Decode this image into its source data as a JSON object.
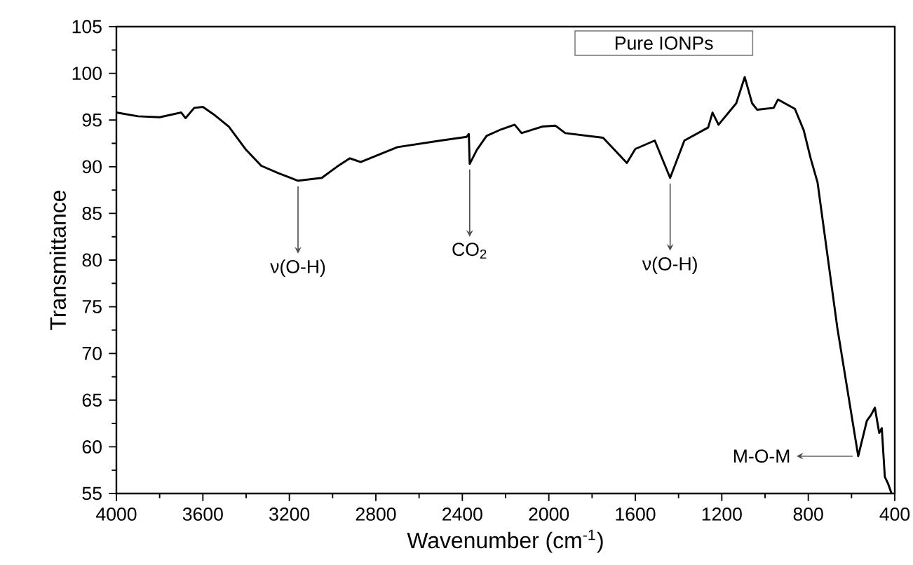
{
  "chart_data": {
    "type": "line",
    "xlabel": "Wavenumber (cm$^{-1}$)",
    "ylabel": "Transmittance",
    "x": [
      4000,
      3900,
      3800,
      3700,
      3680,
      3640,
      3600,
      3550,
      3480,
      3400,
      3330,
      3250,
      3160,
      3050,
      2980,
      2920,
      2870,
      2700,
      2500,
      2380,
      2370,
      2366,
      2333,
      2288,
      2220,
      2158,
      2126,
      2030,
      1970,
      1924,
      1749,
      1639,
      1600,
      1510,
      1439,
      1373,
      1263,
      1243,
      1215,
      1133,
      1094,
      1060,
      1036,
      960,
      940,
      862,
      821,
      789,
      757,
      666,
      569,
      529,
      510,
      492,
      472,
      460,
      446,
      430,
      415
    ],
    "series": [
      {
        "color": "#000000",
        "values": [
          95.8,
          95.4,
          95.3,
          95.8,
          95.2,
          96.3,
          96.4,
          95.6,
          94.3,
          91.8,
          90.1,
          89.3,
          88.5,
          88.8,
          90.0,
          90.9,
          90.5,
          92.1,
          92.8,
          93.2,
          93.5,
          90.3,
          91.8,
          93.3,
          94.0,
          94.5,
          93.6,
          94.3,
          94.4,
          93.6,
          93.1,
          90.4,
          91.9,
          92.8,
          88.8,
          92.8,
          94.2,
          95.8,
          94.5,
          96.8,
          99.6,
          96.8,
          96.1,
          96.3,
          97.2,
          96.2,
          93.9,
          90.9,
          88.3,
          72.8,
          59.0,
          62.8,
          63.4,
          64.2,
          61.5,
          62.0,
          56.8,
          56.0,
          55.0
        ]
      }
    ],
    "xlim": [
      4000,
      400
    ],
    "ylim": [
      55,
      105
    ],
    "xticks": [
      4000,
      3600,
      3200,
      2800,
      2400,
      2000,
      1600,
      1200,
      800,
      400
    ],
    "yticks": [
      55,
      60,
      65,
      70,
      75,
      80,
      85,
      90,
      95,
      100,
      105
    ],
    "annotations": [
      "Pure IONPs",
      {
        "text": "ν(O-H)",
        "x": 3160,
        "y": 88.5
      },
      {
        "text": "CO$_{2}$",
        "x": 2366,
        "y": 90.3
      },
      {
        "text": "ν(O-H)",
        "x": 1439,
        "y": 88.8
      },
      {
        "text": "M-O-M",
        "x": 569,
        "y": 59.0
      }
    ],
    "grid": false
  }
}
